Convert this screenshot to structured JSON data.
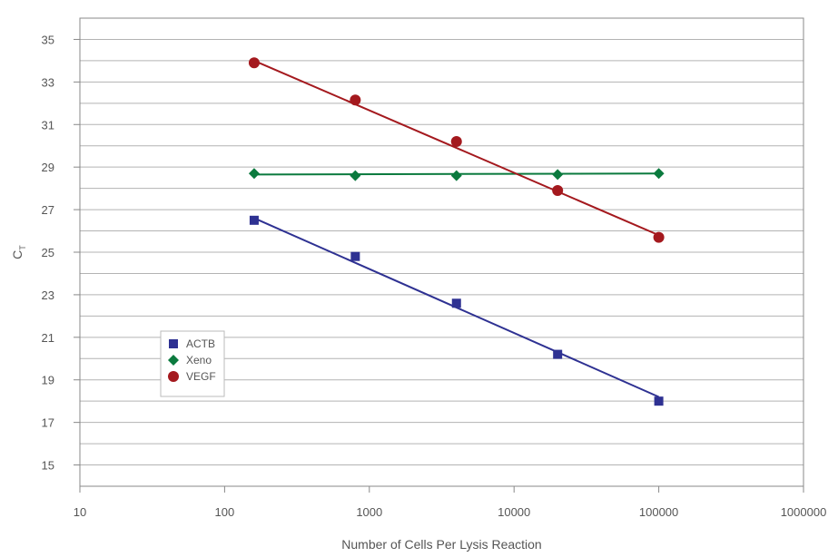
{
  "chart_data": {
    "type": "scatter",
    "xlabel": "Number of Cells Per Lysis Reaction",
    "ylabel_main": "C",
    "ylabel_sub": "T",
    "x_scale": "log",
    "xlim": [
      10,
      1000000
    ],
    "ylim": [
      14,
      36
    ],
    "x_ticks": [
      10,
      100,
      1000,
      10000,
      100000,
      1000000
    ],
    "x_tick_labels": [
      "10",
      "100",
      "1000",
      "10000",
      "100000",
      "1000000"
    ],
    "y_ticks": [
      15,
      17,
      19,
      21,
      23,
      25,
      27,
      29,
      31,
      33,
      35
    ],
    "y_tick_labels": [
      "15",
      "17",
      "19",
      "21",
      "23",
      "25",
      "27",
      "29",
      "31",
      "33",
      "35"
    ],
    "grid": true,
    "legend_position": "lower-left",
    "series": [
      {
        "name": "ACTB",
        "marker": "square",
        "color": "#2e3192",
        "x": [
          160,
          800,
          4000,
          20000,
          100000
        ],
        "y": [
          26.5,
          24.8,
          22.6,
          20.2,
          18.0
        ],
        "fit": [
          26.6,
          18.2
        ]
      },
      {
        "name": "Xeno",
        "marker": "diamond",
        "color": "#0b7a3e",
        "x": [
          160,
          800,
          4000,
          20000,
          100000
        ],
        "y": [
          28.7,
          28.6,
          28.6,
          28.65,
          28.7
        ],
        "fit": [
          28.65,
          28.7
        ]
      },
      {
        "name": "VEGF",
        "marker": "circle",
        "color": "#a4191e",
        "x": [
          160,
          800,
          4000,
          20000,
          100000
        ],
        "y": [
          33.9,
          32.15,
          30.2,
          27.9,
          25.7
        ],
        "fit": [
          34.0,
          25.8
        ]
      }
    ]
  }
}
